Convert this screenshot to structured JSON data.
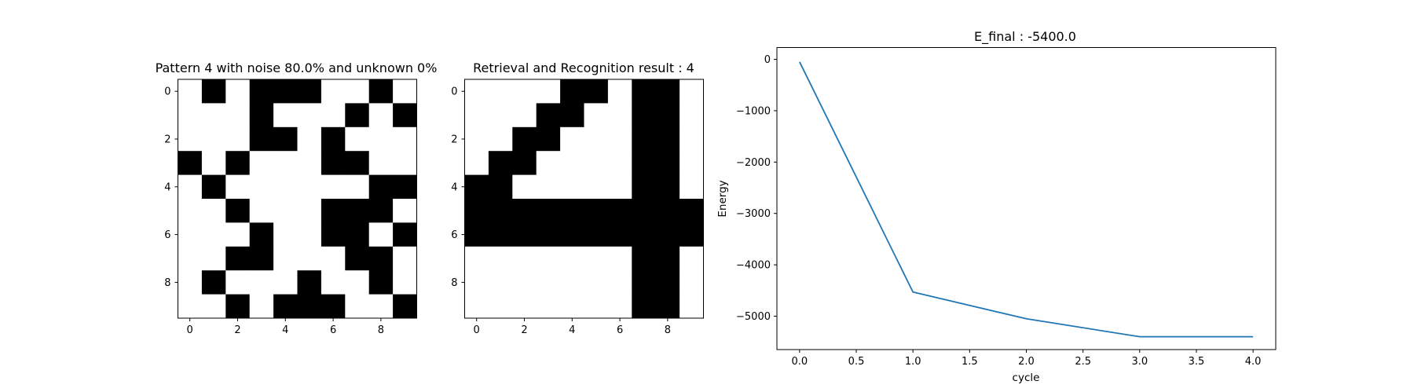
{
  "chart_data": [
    {
      "type": "heatmap",
      "title": "Pattern 4 with noise 80.0% and unknown 0%",
      "xticks": [
        "0",
        "2",
        "4",
        "6",
        "8"
      ],
      "yticks": [
        "0",
        "2",
        "4",
        "6",
        "8"
      ],
      "colors": {
        "on": "#000000",
        "off": "#ffffff"
      },
      "grid": [
        [
          0,
          1,
          0,
          1,
          1,
          1,
          0,
          0,
          1,
          0
        ],
        [
          0,
          0,
          0,
          1,
          0,
          0,
          0,
          1,
          0,
          1
        ],
        [
          0,
          0,
          0,
          1,
          1,
          0,
          1,
          0,
          0,
          0
        ],
        [
          1,
          0,
          1,
          0,
          0,
          0,
          1,
          1,
          0,
          0
        ],
        [
          0,
          1,
          0,
          0,
          0,
          0,
          0,
          0,
          1,
          1
        ],
        [
          0,
          0,
          1,
          0,
          0,
          0,
          1,
          1,
          1,
          0
        ],
        [
          0,
          0,
          0,
          1,
          0,
          0,
          1,
          1,
          0,
          1
        ],
        [
          0,
          0,
          1,
          1,
          0,
          0,
          0,
          1,
          1,
          0
        ],
        [
          0,
          1,
          0,
          0,
          0,
          1,
          0,
          0,
          1,
          0
        ],
        [
          0,
          0,
          1,
          0,
          1,
          1,
          1,
          0,
          0,
          1
        ]
      ]
    },
    {
      "type": "heatmap",
      "title": "Retrieval and Recognition result : 4",
      "xticks": [
        "0",
        "2",
        "4",
        "6",
        "8"
      ],
      "yticks": [
        "0",
        "2",
        "4",
        "6",
        "8"
      ],
      "colors": {
        "on": "#000000",
        "off": "#ffffff"
      },
      "grid": [
        [
          0,
          0,
          0,
          0,
          1,
          1,
          0,
          1,
          1,
          0
        ],
        [
          0,
          0,
          0,
          1,
          1,
          0,
          0,
          1,
          1,
          0
        ],
        [
          0,
          0,
          1,
          1,
          0,
          0,
          0,
          1,
          1,
          0
        ],
        [
          0,
          1,
          1,
          0,
          0,
          0,
          0,
          1,
          1,
          0
        ],
        [
          1,
          1,
          0,
          0,
          0,
          0,
          0,
          1,
          1,
          0
        ],
        [
          1,
          1,
          1,
          1,
          1,
          1,
          1,
          1,
          1,
          1
        ],
        [
          1,
          1,
          1,
          1,
          1,
          1,
          1,
          1,
          1,
          1
        ],
        [
          0,
          0,
          0,
          0,
          0,
          0,
          0,
          1,
          1,
          0
        ],
        [
          0,
          0,
          0,
          0,
          0,
          0,
          0,
          1,
          1,
          0
        ],
        [
          0,
          0,
          0,
          0,
          0,
          0,
          0,
          1,
          1,
          0
        ]
      ]
    },
    {
      "type": "line",
      "title": "E_final : -5400.0",
      "xlabel": "cycle",
      "ylabel": "Energy",
      "x": [
        0,
        1,
        2,
        3,
        4
      ],
      "series": [
        {
          "values": [
            -50,
            -4530,
            -5050,
            -5400,
            -5400
          ],
          "color": "#1f77b4"
        }
      ],
      "xlim": [
        -0.2,
        4.2
      ],
      "ylim": [
        -5650,
        230
      ],
      "xticks": [
        0.0,
        0.5,
        1.0,
        1.5,
        2.0,
        2.5,
        3.0,
        3.5,
        4.0
      ],
      "xtick_labels": [
        "0.0",
        "0.5",
        "1.0",
        "1.5",
        "2.0",
        "2.5",
        "3.0",
        "3.5",
        "4.0"
      ],
      "yticks": [
        0,
        -1000,
        -2000,
        -3000,
        -4000,
        -5000
      ],
      "ytick_labels": [
        "0",
        "−1000",
        "−2000",
        "−3000",
        "−4000",
        "−5000"
      ],
      "grid": false
    }
  ]
}
